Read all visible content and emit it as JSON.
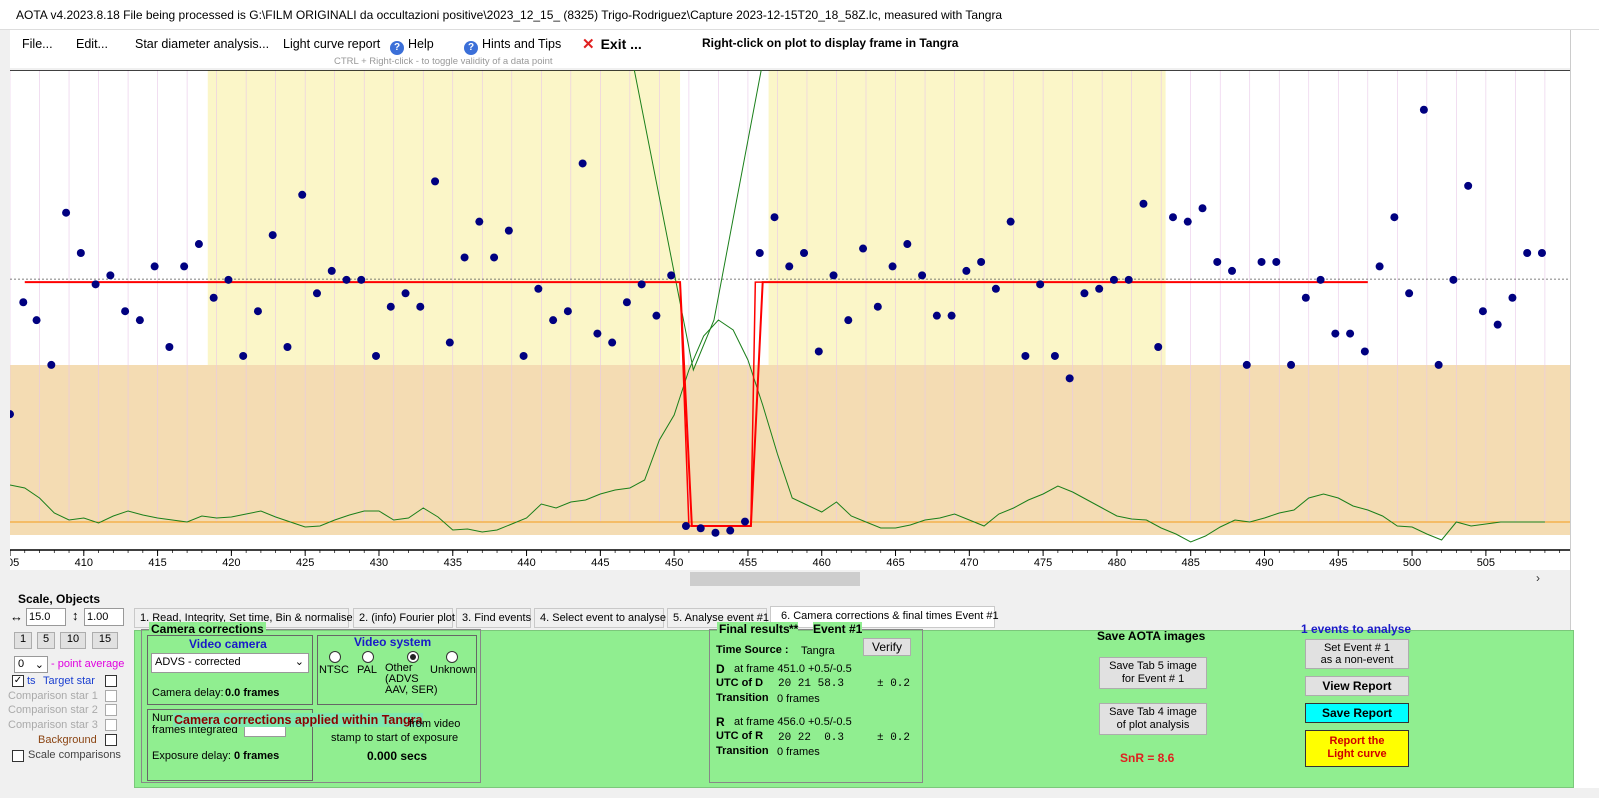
{
  "window": {
    "title": "AOTA v4.2023.8.18    File being processed is G:\\FILM ORIGINALI da occultazioni positive\\2023_12_15_ (8325) Trigo-Rodriguez\\Capture 2023-12-15T20_18_58Z.lc, measured with Tangra"
  },
  "menu": {
    "file": "File...",
    "edit": "Edit...",
    "star_diameter": "Star diameter analysis...",
    "light_curve_report": "Light curve report",
    "help": "Help",
    "hints": "Hints and Tips",
    "exit": "Exit ...",
    "right_click_note": "Right-click on plot to display frame in Tangra",
    "ctrl_hint": "CTRL + Right-click  -  to toggle validity of a data point"
  },
  "chart_data": {
    "type": "scatter",
    "x_tick_labels": [
      "405",
      "410",
      "415",
      "420",
      "425",
      "430",
      "435",
      "440",
      "445",
      "450",
      "455",
      "460",
      "465",
      "470",
      "475",
      "480",
      "485",
      "490",
      "495",
      "500",
      "505"
    ],
    "x_tick_values": [
      405,
      410,
      415,
      420,
      425,
      430,
      435,
      440,
      445,
      450,
      455,
      460,
      465,
      470,
      475,
      480,
      485,
      490,
      495,
      500,
      505
    ],
    "xlim": [
      405,
      510.7
    ],
    "points": [
      [
        405,
        0.27
      ],
      [
        405.9,
        0.52
      ],
      [
        406.8,
        0.48
      ],
      [
        407.8,
        0.38
      ],
      [
        408.8,
        0.72
      ],
      [
        409.8,
        0.63
      ],
      [
        410.8,
        0.56
      ],
      [
        411.8,
        0.58
      ],
      [
        412.8,
        0.5
      ],
      [
        413.8,
        0.48
      ],
      [
        414.8,
        0.6
      ],
      [
        415.8,
        0.42
      ],
      [
        416.8,
        0.6
      ],
      [
        417.8,
        0.65
      ],
      [
        418.8,
        0.53
      ],
      [
        419.8,
        0.57
      ],
      [
        420.8,
        0.4
      ],
      [
        421.8,
        0.5
      ],
      [
        422.8,
        0.67
      ],
      [
        423.8,
        0.42
      ],
      [
        424.8,
        0.76
      ],
      [
        425.8,
        0.54
      ],
      [
        426.8,
        0.59
      ],
      [
        427.8,
        0.57
      ],
      [
        428.8,
        0.57
      ],
      [
        429.8,
        0.4
      ],
      [
        430.8,
        0.51
      ],
      [
        431.8,
        0.54
      ],
      [
        432.8,
        0.51
      ],
      [
        433.8,
        0.79
      ],
      [
        434.8,
        0.43
      ],
      [
        435.8,
        0.62
      ],
      [
        436.8,
        0.7
      ],
      [
        437.8,
        0.62
      ],
      [
        438.8,
        0.68
      ],
      [
        439.8,
        0.4
      ],
      [
        440.8,
        0.55
      ],
      [
        441.8,
        0.48
      ],
      [
        442.8,
        0.5
      ],
      [
        443.8,
        0.83
      ],
      [
        444.8,
        0.45
      ],
      [
        445.8,
        0.43
      ],
      [
        446.8,
        0.52
      ],
      [
        447.8,
        0.56
      ],
      [
        448.8,
        0.49
      ],
      [
        449.8,
        0.58
      ],
      [
        450.8,
        0.02
      ],
      [
        451.8,
        0.015
      ],
      [
        452.8,
        0.005
      ],
      [
        453.8,
        0.01
      ],
      [
        454.8,
        0.03
      ],
      [
        455.8,
        0.63
      ],
      [
        456.8,
        0.71
      ],
      [
        457.8,
        0.6
      ],
      [
        458.8,
        0.63
      ],
      [
        459.8,
        0.41
      ],
      [
        460.8,
        0.58
      ],
      [
        461.8,
        0.48
      ],
      [
        462.8,
        0.64
      ],
      [
        463.8,
        0.51
      ],
      [
        464.8,
        0.6
      ],
      [
        465.8,
        0.65
      ],
      [
        466.8,
        0.58
      ],
      [
        467.8,
        0.49
      ],
      [
        468.8,
        0.49
      ],
      [
        469.8,
        0.59
      ],
      [
        470.8,
        0.61
      ],
      [
        471.8,
        0.55
      ],
      [
        472.8,
        0.7
      ],
      [
        473.8,
        0.4
      ],
      [
        474.8,
        0.56
      ],
      [
        475.8,
        0.4
      ],
      [
        476.8,
        0.35
      ],
      [
        477.8,
        0.54
      ],
      [
        478.8,
        0.55
      ],
      [
        479.8,
        0.57
      ],
      [
        480.8,
        0.57
      ],
      [
        481.8,
        0.74
      ],
      [
        482.8,
        0.42
      ],
      [
        483.8,
        0.71
      ],
      [
        484.8,
        0.7
      ],
      [
        485.8,
        0.73
      ],
      [
        486.8,
        0.61
      ],
      [
        487.8,
        0.59
      ],
      [
        488.8,
        0.38
      ],
      [
        489.8,
        0.61
      ],
      [
        490.8,
        0.61
      ],
      [
        491.8,
        0.38
      ],
      [
        492.8,
        0.53
      ],
      [
        493.8,
        0.57
      ],
      [
        494.8,
        0.45
      ],
      [
        495.8,
        0.45
      ],
      [
        496.8,
        0.41
      ],
      [
        497.8,
        0.6
      ],
      [
        498.8,
        0.71
      ],
      [
        499.8,
        0.54
      ],
      [
        500.8,
        0.95
      ],
      [
        501.8,
        0.38
      ],
      [
        502.8,
        0.57
      ],
      [
        503.8,
        0.78
      ],
      [
        504.8,
        0.5
      ],
      [
        505.8,
        0.47
      ],
      [
        506.8,
        0.53
      ],
      [
        507.8,
        0.63
      ],
      [
        508.8,
        0.63
      ]
    ],
    "model_baseline": 0.565,
    "model_bottom": 0.02,
    "D_frame": 451.0,
    "R_frame": 456.0,
    "pre_event_region": [
      418.4,
      450.4
    ],
    "post_event_region": [
      456.4,
      483.3
    ],
    "colors": {
      "point": "#000080",
      "model": "#ff0000",
      "region": "#fbf6c8",
      "lower_band": "#f4dcb3",
      "green_curve": "#1a7f1a",
      "orange_line": "#f59b1b"
    }
  },
  "scale_panel": {
    "title": "Scale,  Objects",
    "scale_value": "15.0",
    "vert_value": "1.00",
    "btn_1": "1",
    "btn_5": "5",
    "btn_10": "10",
    "btn_15": "15",
    "point_avg_value": "0",
    "point_avg_label": "- point average",
    "points_label": "ts",
    "target_star": "Target star",
    "comp1": "Comparison star 1",
    "comp2": "Comparison star 2",
    "comp3": "Comparison star 3",
    "background": "Background",
    "scale_comparisons": "Scale comparisons"
  },
  "tabs": [
    "1.  Read, Integrity, Set time, Bin & normalise",
    "2. (info)  Fourier plot",
    "3. Find events",
    "4. Select event to analyse",
    "5. Analyse event #1",
    "6. Camera corrections & final times Event #1"
  ],
  "camera": {
    "title": "Camera corrections",
    "video_camera": "Video camera",
    "camera_select": "ADVS - corrected",
    "camera_delay_label": "Camera delay:",
    "camera_delay_value": "0.0 frames",
    "video_system": "Video system",
    "ntsc": "NTSC",
    "pal": "PAL",
    "other": "Other",
    "other_sub": "(ADVS\nAAV, SER)",
    "unknown": "Unknown",
    "num_frames_label": "Num",
    "frames_integrated": "frames integrated",
    "applied_note": "Camera corrections applied within Tangra",
    "from_video": "from video",
    "stamp_note": "stamp to start of exposure",
    "exposure_delay_label": "Exposure delay:",
    "exposure_delay_value": "0 frames",
    "secs_value": "0.000 secs"
  },
  "final": {
    "title": "Final results",
    "stars": "**",
    "event": "Event #1",
    "verify": "Verify",
    "time_source_label": "Time Source :",
    "time_source": "Tangra",
    "D_label": "D",
    "D_frame": "at frame 451.0  +0.5/-0.5",
    "utc_d_label": "UTC of D",
    "utc_d": "20 21 58.3",
    "pm_d": "± 0.2",
    "transition_label": "Transition",
    "transition_d": "0 frames",
    "R_label": "R",
    "R_frame": "at frame 456.0  +0.5/-0.5",
    "utc_r_label": "UTC of R",
    "utc_r": "20 22  0.3",
    "pm_r": "± 0.2",
    "transition_r": "0 frames"
  },
  "save_images": {
    "title": "Save AOTA images",
    "tab5": "Save Tab 5 image\nfor Event # 1",
    "tab4": "Save Tab 4 image\nof plot analysis",
    "snr": "SnR = 8.6"
  },
  "report": {
    "events_count": "1  events to analyse",
    "set_nonevent": "Set Event # 1\nas a non-event",
    "view_report": "View Report",
    "save_report": "Save Report",
    "report_lc": "Report the\nLight curve"
  }
}
